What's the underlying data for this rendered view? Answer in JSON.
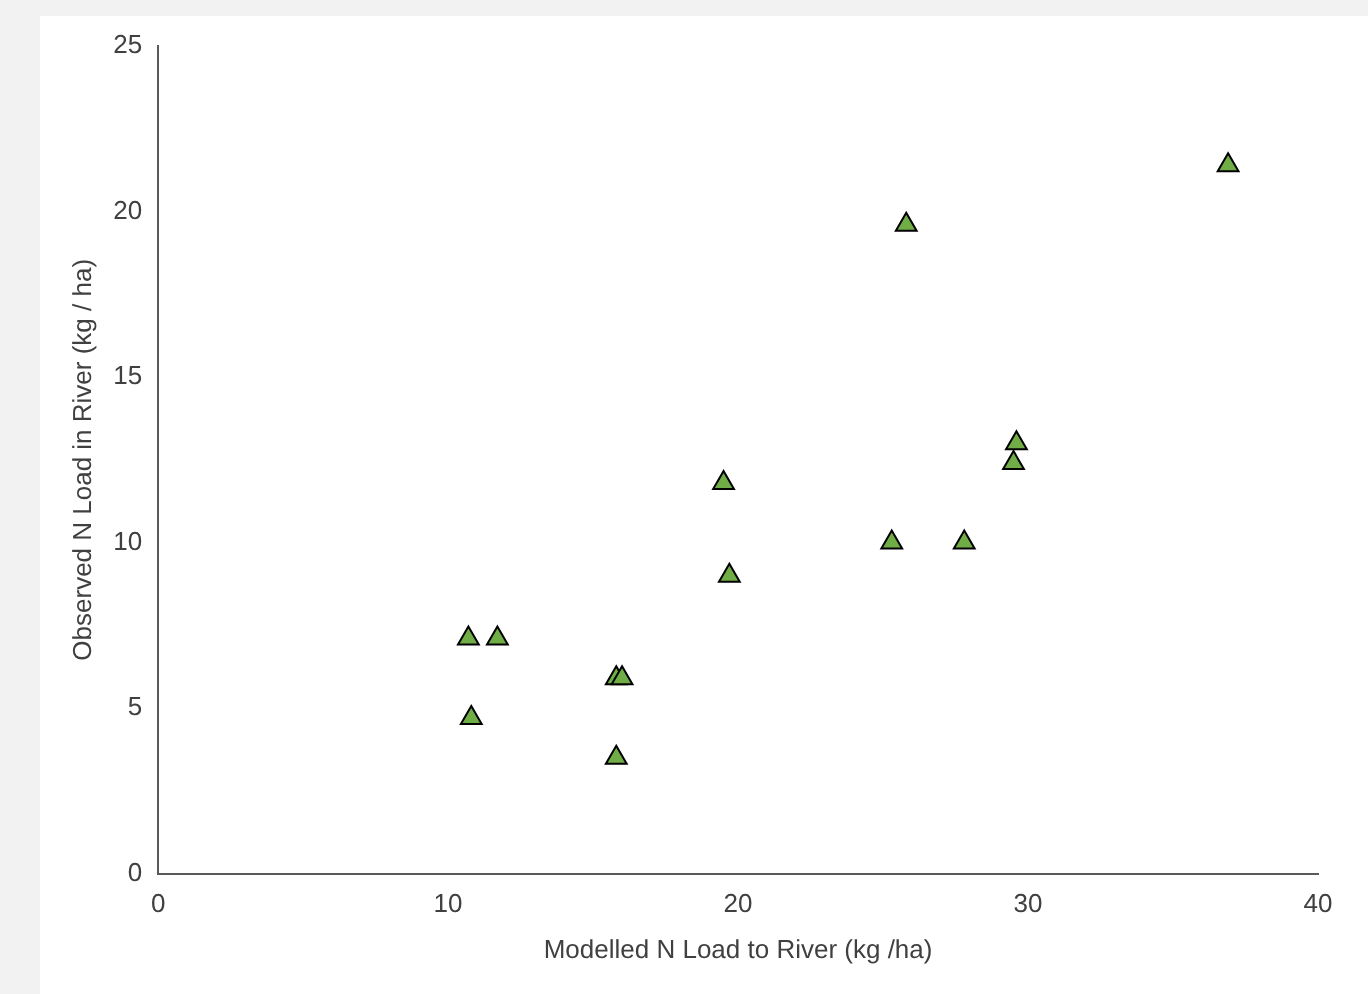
{
  "chart_data": {
    "type": "scatter",
    "xlabel": "Modelled N Load to River (kg /ha)",
    "ylabel": "Observed N Load in River (kg / ha)",
    "x": [
      10.7,
      11.7,
      10.8,
      15.8,
      16.0,
      15.8,
      19.5,
      19.7,
      25.8,
      25.3,
      27.8,
      29.6,
      29.5,
      36.9
    ],
    "series": [
      {
        "color": "#70ad47",
        "values": [
          7.1,
          7.1,
          4.7,
          5.9,
          5.9,
          3.5,
          11.8,
          9.0,
          19.6,
          10.0,
          10.0,
          13.0,
          12.4,
          21.4
        ]
      }
    ],
    "xlim": [
      0,
      40
    ],
    "xticks": [
      0,
      10,
      20,
      30,
      40
    ],
    "ylim": [
      0,
      25
    ],
    "yticks": [
      0,
      5,
      10,
      15,
      20,
      25
    ],
    "grid": false,
    "legend": false,
    "marker": "triangle"
  }
}
